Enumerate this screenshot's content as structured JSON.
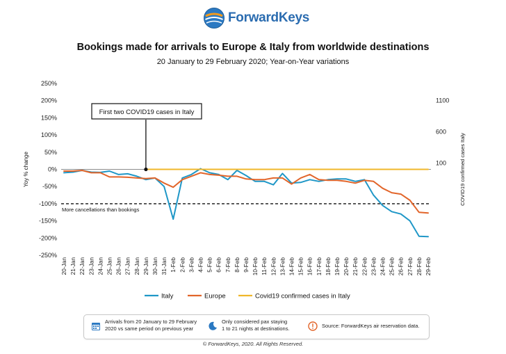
{
  "logo": {
    "text": "ForwardKeys"
  },
  "chart_data": {
    "type": "line",
    "title": "Bookings made for arrivals to Europe & Italy from worldwide destinations",
    "subtitle": "20 January to 29 February 2020; Year-on-Year variations",
    "ylabel": "Yoy % change",
    "y2label": "COVID19 confirmed cases Italy",
    "ylim": [
      -250,
      250
    ],
    "y_ticks": [
      "250%",
      "200%",
      "150%",
      "100%",
      "50%",
      "0%",
      "-50%",
      "-100%",
      "-150%",
      "-200%",
      "-250%"
    ],
    "y2_ticks": [
      {
        "label": "1100",
        "value": 1100
      },
      {
        "label": "600",
        "value": 600
      },
      {
        "label": "100",
        "value": 100
      }
    ],
    "y2lim": [
      0,
      1100
    ],
    "categories": [
      "20-Jan",
      "21-Jan",
      "22-Jan",
      "23-Jan",
      "24-Jan",
      "25-Jan",
      "26-Jan",
      "27-Jan",
      "28-Jan",
      "29-Jan",
      "30-Jan",
      "31-Jan",
      "1-Feb",
      "2-Feb",
      "3-Feb",
      "4-Feb",
      "5-Feb",
      "6-Feb",
      "7-Feb",
      "8-Feb",
      "9-Feb",
      "10-Feb",
      "11-Feb",
      "12-Feb",
      "13-Feb",
      "14-Feb",
      "15-Feb",
      "16-Feb",
      "17-Feb",
      "18-Feb",
      "19-Feb",
      "20-Feb",
      "21-Feb",
      "22-Feb",
      "23-Feb",
      "24-Feb",
      "25-Feb",
      "26-Feb",
      "27-Feb",
      "28-Feb",
      "29-Feb"
    ],
    "series": [
      {
        "name": "Italy",
        "color": "#1f97c7",
        "axis": "left",
        "values": [
          -10,
          -8,
          -3,
          -8,
          -9,
          -5,
          -15,
          -13,
          -20,
          -30,
          -25,
          -50,
          -145,
          -25,
          -15,
          2,
          -10,
          -15,
          -30,
          -3,
          -18,
          -35,
          -35,
          -45,
          -12,
          -40,
          -38,
          -30,
          -35,
          -30,
          -28,
          -28,
          -35,
          -30,
          -75,
          -105,
          -123,
          -130,
          -150,
          -195,
          -196
        ]
      },
      {
        "name": "Europe",
        "color": "#e2652a",
        "axis": "left",
        "values": [
          -5,
          -5,
          -3,
          -10,
          -10,
          -22,
          -22,
          -23,
          -25,
          -27,
          -25,
          -40,
          -52,
          -30,
          -20,
          -10,
          -15,
          -17,
          -20,
          -20,
          -28,
          -30,
          -30,
          -25,
          -25,
          -43,
          -25,
          -15,
          -30,
          -32,
          -32,
          -35,
          -40,
          -32,
          -35,
          -55,
          -68,
          -72,
          -90,
          -125,
          -127
        ]
      },
      {
        "name": "Covid19 confirmed cases in Italy",
        "color": "#f0b72a",
        "axis": "right",
        "start_index": 9,
        "values": [
          0,
          0,
          0,
          0,
          0,
          0,
          0,
          0,
          0,
          0,
          0,
          0,
          0,
          0,
          0,
          0,
          0,
          0,
          0,
          0,
          0,
          0,
          0,
          0,
          0,
          0,
          0,
          0,
          0,
          0,
          0,
          0,
          0,
          0,
          0,
          0,
          0,
          0,
          0,
          0,
          0
        ]
      }
    ],
    "covid_cases": [
      0,
      0,
      0,
      0,
      0,
      0,
      0,
      0,
      0,
      0,
      0,
      0,
      0,
      0,
      0,
      0,
      0,
      0,
      0,
      0,
      0,
      0,
      0,
      0,
      0,
      0,
      0,
      0,
      0,
      0,
      0,
      0,
      0,
      0,
      0,
      0,
      0,
      0,
      0,
      0,
      0
    ],
    "reference_line": {
      "value": -100,
      "label": "More cancellations than bookings"
    },
    "annotation": {
      "text": "First two COVID19 cases in Italy",
      "index": 9,
      "value": 0
    },
    "legend_position": "bottom"
  },
  "info": {
    "item1": "Arrivals from 20 January to 29 February 2020 vs same period on previous year",
    "item2": "Only considered pax staying 1 to 21 nights at destinations.",
    "item3": "Source: ForwardKeys air reservation data."
  },
  "copyright": "© ForwardKeys, 2020. All Rights Reserved.",
  "icons": {
    "calendar": "calendar-icon",
    "night": "moon-icon",
    "source": "info-icon"
  }
}
